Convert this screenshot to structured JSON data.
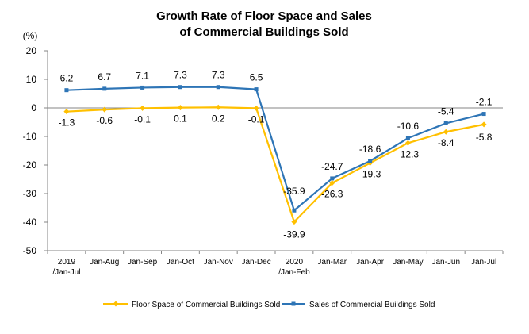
{
  "chart_data": {
    "type": "line",
    "title_line1": "Growth Rate of Floor Space and Sales",
    "title_line2": "of Commercial Buildings Sold",
    "unit": "(%)",
    "categories": [
      [
        "2019",
        "/Jan-Jul"
      ],
      [
        "Jan-Aug"
      ],
      [
        "Jan-Sep"
      ],
      [
        "Jan-Oct"
      ],
      [
        "Jan-Nov"
      ],
      [
        "Jan-Dec"
      ],
      [
        "2020",
        "/Jan-Feb"
      ],
      [
        "Jan-Mar"
      ],
      [
        "Jan-Apr"
      ],
      [
        "Jan-May"
      ],
      [
        "Jan-Jun"
      ],
      [
        "Jan-Jul"
      ]
    ],
    "ylim": [
      -50,
      20
    ],
    "yticks": [
      20,
      10,
      0,
      -10,
      -20,
      -30,
      -40,
      -50
    ],
    "grid": false,
    "legend_position": "bottom",
    "series": [
      {
        "name": "Floor Space of Commercial Buildings Sold",
        "color": "#FFC000",
        "marker": "diamond",
        "values": [
          -1.3,
          -0.6,
          -0.1,
          0.1,
          0.2,
          -0.1,
          -39.9,
          -26.3,
          -19.3,
          -12.3,
          -8.4,
          -5.8
        ],
        "labels": [
          "-1.3",
          "-0.6",
          "-0.1",
          "0.1",
          "0.2",
          "-0.1",
          "-39.9",
          "-26.3",
          "-19.3",
          "-12.3",
          "-8.4",
          "-5.8"
        ]
      },
      {
        "name": "Sales of Commercial Buildings Sold",
        "color": "#2E75B6",
        "marker": "square",
        "values": [
          6.2,
          6.7,
          7.1,
          7.3,
          7.3,
          6.5,
          -35.9,
          -24.7,
          -18.6,
          -10.6,
          -5.4,
          -2.1
        ],
        "labels": [
          "6.2",
          "6.7",
          "7.1",
          "7.3",
          "7.3",
          "6.5",
          "-35.9",
          "-24.7",
          "-18.6",
          "-10.6",
          "-5.4",
          "-2.1"
        ]
      }
    ]
  }
}
